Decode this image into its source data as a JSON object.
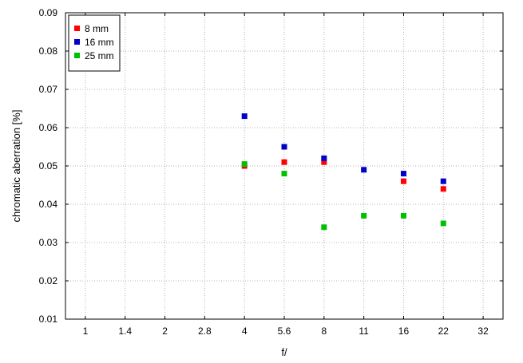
{
  "chart_data": {
    "type": "scatter",
    "xlabel": "f/",
    "ylabel": "chromatic aberration [%]",
    "x_categories": [
      "1",
      "1.4",
      "2",
      "2.8",
      "4",
      "5.6",
      "8",
      "11",
      "16",
      "22",
      "32"
    ],
    "y_ticks": [
      "0.01",
      "0.02",
      "0.03",
      "0.04",
      "0.05",
      "0.06",
      "0.07",
      "0.08",
      "0.09"
    ],
    "ylim": [
      0.01,
      0.09
    ],
    "grid": true,
    "legend_position": "top-left",
    "series": [
      {
        "name": "8 mm",
        "color": "#ff0000",
        "points": [
          {
            "x": "4",
            "y": 0.05
          },
          {
            "x": "5.6",
            "y": 0.051
          },
          {
            "x": "8",
            "y": 0.051
          },
          {
            "x": "16",
            "y": 0.046
          },
          {
            "x": "22",
            "y": 0.044
          }
        ]
      },
      {
        "name": "16 mm",
        "color": "#0000c8",
        "points": [
          {
            "x": "4",
            "y": 0.063
          },
          {
            "x": "5.6",
            "y": 0.055
          },
          {
            "x": "8",
            "y": 0.052
          },
          {
            "x": "11",
            "y": 0.049
          },
          {
            "x": "16",
            "y": 0.048
          },
          {
            "x": "22",
            "y": 0.046
          }
        ]
      },
      {
        "name": "25 mm",
        "color": "#00c000",
        "points": [
          {
            "x": "4",
            "y": 0.0505
          },
          {
            "x": "5.6",
            "y": 0.048
          },
          {
            "x": "8",
            "y": 0.034
          },
          {
            "x": "11",
            "y": 0.037
          },
          {
            "x": "16",
            "y": 0.037
          },
          {
            "x": "22",
            "y": 0.035
          }
        ]
      }
    ]
  }
}
